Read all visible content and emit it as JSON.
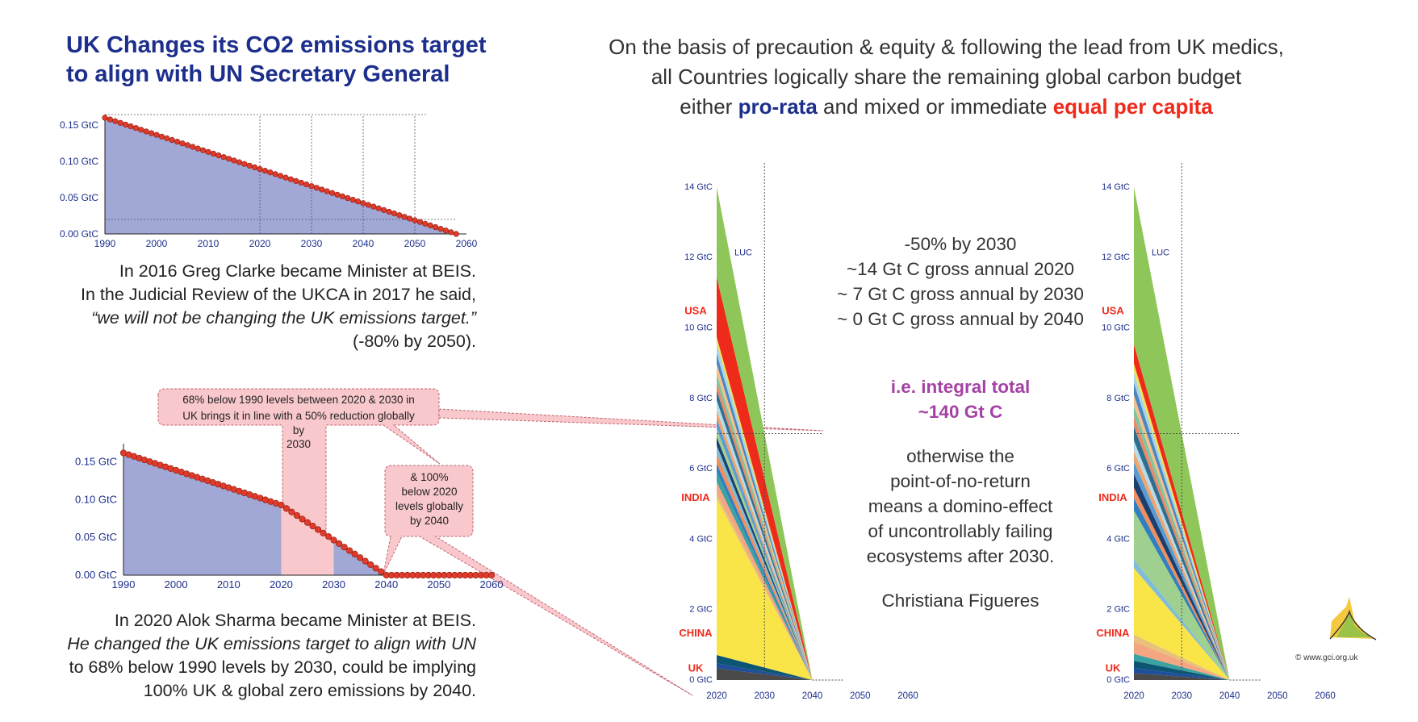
{
  "title_left": [
    "UK Changes its CO2 emissions target",
    "to align with UN Secretary General"
  ],
  "headline": {
    "line1": "On the basis of precaution & equity & following the lead from UK medics,",
    "line2": "all Countries logically share the remaining global carbon budget",
    "line3_a": "either ",
    "line3_b": "pro-rata",
    "line3_c": " and mixed or immediate ",
    "line3_d": "equal per capita"
  },
  "quote1": {
    "l1": "In 2016 Greg Clarke became Minister at BEIS.",
    "l2": "In the Judicial Review of the UKCA in 2017 he said,",
    "l3": "“we will not be changing the UK emissions target.”",
    "l4": "(-80% by 2050)."
  },
  "quote2": {
    "l1": "In 2020 Alok Sharma became Minister at BEIS.",
    "l2": "He changed the UK emissions target to align with UN",
    "l3": "to 68% below 1990 levels by 2030, could be implying",
    "l4": "100% UK & global zero emissions by 2040."
  },
  "callouts": {
    "c1": [
      "68% below 1990 levels between 2020 & 2030 in",
      "UK brings it in line with a 50% reduction globally",
      "by",
      "2030"
    ],
    "c2": [
      "& 100%",
      "below 2020",
      "levels globally",
      "by 2040"
    ]
  },
  "center_text": {
    "l1": "-50% by 2030",
    "l2": "~14 Gt C gross annual 2020",
    "l3": "~ 7 Gt C gross annual  by 2030",
    "l4": "~ 0 Gt C gross annual by 2040",
    "p1": "i.e. integral total",
    "p2": "~140 Gt C",
    "q1": "otherwise the",
    "q2": "point-of-no-return",
    "q3": "means a domino-effect",
    "q4": "of uncontrollably failing",
    "q5": "ecosystems after 2030.",
    "author": "Christiana Figueres"
  },
  "copyright": "©  www.gci.org.uk",
  "colors": {
    "title_blue": "#1d2f8c",
    "area_fill": "#a1a8d6",
    "marker_red": "#e03a2a",
    "callout_pink": "#f9c8cc",
    "country_red": "#ee2a1b",
    "purple": "#a442a4"
  },
  "chart_data": [
    {
      "id": "uk-old-target",
      "type": "area",
      "x": [
        1990,
        2058
      ],
      "y": [
        0.16,
        0.0
      ],
      "xticks": [
        "1990",
        "2000",
        "2010",
        "2020",
        "2030",
        "2040",
        "2050",
        "2060"
      ],
      "yticks": [
        "0.00 GtC",
        "0.05 GtC",
        "0.10 GtC",
        "0.15 GtC"
      ],
      "xlim": [
        1990,
        2060
      ],
      "ylim": [
        0,
        0.16
      ]
    },
    {
      "id": "uk-new-target",
      "type": "area",
      "x": [
        1990,
        2020,
        2040,
        2060
      ],
      "y": [
        0.162,
        0.093,
        0.0,
        0.0
      ],
      "highlight": [
        2020,
        2030
      ],
      "xticks": [
        "1990",
        "2000",
        "2010",
        "2020",
        "2030",
        "2040",
        "2050",
        "2060"
      ],
      "yticks": [
        "0.00 GtC",
        "0.05 GtC",
        "0.10 GtC",
        "0.15 GtC"
      ],
      "xlim": [
        1990,
        2060
      ],
      "ylim": [
        0,
        0.17
      ]
    },
    {
      "id": "global-pro-rata",
      "type": "area",
      "x": [
        2020,
        2040
      ],
      "total_2020": 14,
      "xticks": [
        "2020",
        "2030",
        "2040",
        "2050",
        "2060"
      ],
      "yticks": [
        "0 GtC",
        "2 GtC",
        "4 GtC",
        "6 GtC",
        "8 GtC",
        "10 GtC",
        "12 GtC",
        "14 GtC"
      ],
      "ylim": [
        0,
        14.5
      ],
      "series_labels": [
        "LUC",
        "USA",
        "INDIA",
        "CHINA",
        "UK"
      ],
      "bands": [
        {
          "color": "#4a4a4a",
          "v": 0.35
        },
        {
          "color": "#1f4e9a",
          "v": 0.15
        },
        {
          "color": "#0c5573",
          "v": 0.25
        },
        {
          "color": "#f9e547",
          "v": 4.7
        },
        {
          "color": "#e8c27a",
          "v": 0.15
        },
        {
          "color": "#f4a582",
          "v": 0.35
        },
        {
          "color": "#3aa3a1",
          "v": 0.3
        },
        {
          "color": "#2f7fc1",
          "v": 0.25
        },
        {
          "color": "#f28e5c",
          "v": 0.3
        },
        {
          "color": "#7fbcd8",
          "v": 0.25
        },
        {
          "color": "#1b3f6e",
          "v": 0.25
        },
        {
          "color": "#9fd08f",
          "v": 0.25
        },
        {
          "color": "#5a9bd4",
          "v": 0.3
        },
        {
          "color": "#f0a56c",
          "v": 0.25
        },
        {
          "color": "#b6dbe9",
          "v": 0.3
        },
        {
          "color": "#2e6f90",
          "v": 0.3
        },
        {
          "color": "#e9896a",
          "v": 0.25
        },
        {
          "color": "#7ec6a0",
          "v": 0.25
        },
        {
          "color": "#f7c08a",
          "v": 0.3
        },
        {
          "color": "#4a87c2",
          "v": 0.3
        },
        {
          "color": "#a8d4e5",
          "v": 0.3
        },
        {
          "color": "#f3e05c",
          "v": 0.2
        },
        {
          "color": "#ee2a1b",
          "v": 1.8
        },
        {
          "color": "#8fc65a",
          "v": 2.7
        }
      ]
    },
    {
      "id": "global-equal-per-capita",
      "type": "area",
      "x": [
        2020,
        2040
      ],
      "total_2020": 14,
      "xticks": [
        "2020",
        "2030",
        "2040",
        "2050",
        "2060"
      ],
      "yticks": [
        "0 GtC",
        "2 GtC",
        "4 GtC",
        "6 GtC",
        "8 GtC",
        "10 GtC",
        "12 GtC",
        "14 GtC"
      ],
      "ylim": [
        0,
        14.5
      ],
      "series_labels": [
        "LUC",
        "USA",
        "INDIA",
        "CHINA",
        "UK"
      ],
      "bands": [
        {
          "color": "#4a4a4a",
          "v": 0.2
        },
        {
          "color": "#1f4e9a",
          "v": 0.15
        },
        {
          "color": "#0c5573",
          "v": 0.2
        },
        {
          "color": "#3aa3a1",
          "v": 0.2
        },
        {
          "color": "#f4a582",
          "v": 0.35
        },
        {
          "color": "#e8c27a",
          "v": 0.2
        },
        {
          "color": "#f9e547",
          "v": 1.9
        },
        {
          "color": "#7fbcd8",
          "v": 0.25
        },
        {
          "color": "#9fd08f",
          "v": 1.4
        },
        {
          "color": "#2f7fc1",
          "v": 0.35
        },
        {
          "color": "#f28e5c",
          "v": 0.3
        },
        {
          "color": "#1b3f6e",
          "v": 0.4
        },
        {
          "color": "#5a9bd4",
          "v": 0.35
        },
        {
          "color": "#f0a56c",
          "v": 0.3
        },
        {
          "color": "#b6dbe9",
          "v": 0.3
        },
        {
          "color": "#2e6f90",
          "v": 0.4
        },
        {
          "color": "#e9896a",
          "v": 0.3
        },
        {
          "color": "#7ec6a0",
          "v": 0.3
        },
        {
          "color": "#f7c08a",
          "v": 0.3
        },
        {
          "color": "#4a87c2",
          "v": 0.35
        },
        {
          "color": "#a8d4e5",
          "v": 0.3
        },
        {
          "color": "#f3e05c",
          "v": 0.25
        },
        {
          "color": "#ee2a1b",
          "v": 0.55
        },
        {
          "color": "#8fc65a",
          "v": 4.5
        }
      ]
    }
  ]
}
